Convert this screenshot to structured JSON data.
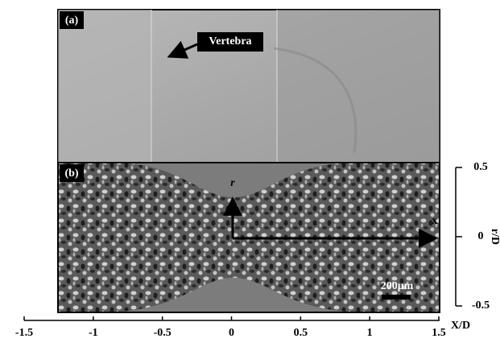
{
  "panels": [
    {
      "label": "(a)",
      "annotation": "Vertebra"
    },
    {
      "label": "(b)",
      "r_label": "r",
      "x_label": "x",
      "scale_bar": "200μm"
    }
  ],
  "x_axis": {
    "label": "X/D",
    "range": [
      -1.5,
      1.5
    ],
    "ticks": [
      -1.5,
      -1,
      -0.5,
      0,
      0.5,
      1,
      1.5
    ]
  },
  "y_axis": {
    "label": "r/D",
    "range": [
      -0.5,
      0.5
    ],
    "ticks": [
      0.5,
      0,
      -0.5
    ]
  }
}
